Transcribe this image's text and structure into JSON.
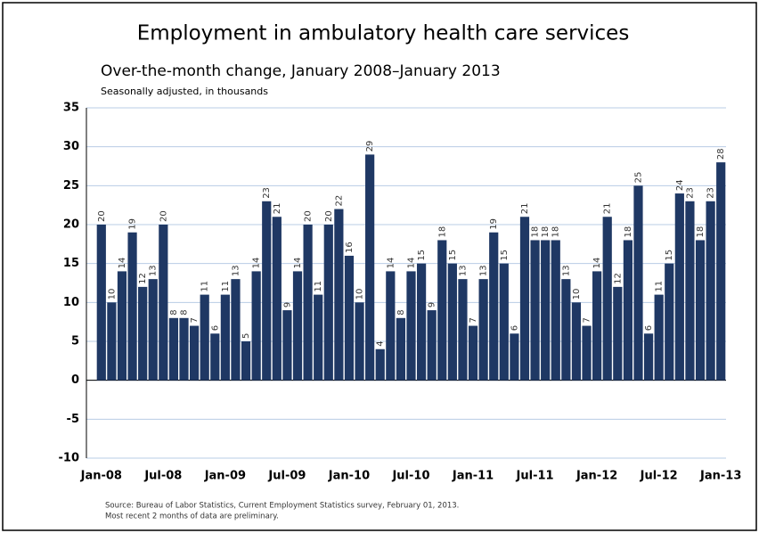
{
  "chart_data": {
    "type": "bar",
    "title": "Employment in ambulatory health care services",
    "subtitle": "Over-the-month change, January 2008–January 2013",
    "y_axis_label": "Seasonally adjusted, in thousands",
    "source": [
      "Source: Bureau of Labor Statistics, Current Employment Statistics survey, February 01, 2013.",
      "Most recent 2 months of data are preliminary."
    ],
    "categories": [
      "Jan-08",
      null,
      null,
      null,
      null,
      null,
      "Jul-08",
      null,
      null,
      null,
      null,
      null,
      "Jan-09",
      null,
      null,
      null,
      null,
      null,
      "Jul-09",
      null,
      null,
      null,
      null,
      null,
      "Jan-10",
      null,
      null,
      null,
      null,
      null,
      "Jul-10",
      null,
      null,
      null,
      null,
      null,
      "Jan-11",
      null,
      null,
      null,
      null,
      null,
      "Jul-11",
      null,
      null,
      null,
      null,
      null,
      "Jan-12",
      null,
      null,
      null,
      null,
      null,
      "Jul-12",
      null,
      null,
      null,
      null,
      null,
      "Jan-13"
    ],
    "values": [
      20,
      10,
      14,
      19,
      12,
      13,
      20,
      8,
      8,
      7,
      11,
      6,
      11,
      13,
      5,
      14,
      23,
      21,
      9,
      14,
      20,
      11,
      20,
      22,
      16,
      10,
      29,
      4,
      14,
      8,
      14,
      15,
      9,
      18,
      15,
      13,
      7,
      13,
      19,
      15,
      6,
      21,
      18,
      18,
      18,
      13,
      10,
      7,
      14,
      21,
      12,
      18,
      25,
      6,
      11,
      15,
      24,
      23,
      18,
      23,
      28
    ],
    "color": "#1f3864",
    "ylim": [
      -10,
      35
    ],
    "yticks": [
      -10,
      -5,
      0,
      5,
      10,
      15,
      20,
      25,
      30,
      35
    ],
    "grid": true
  }
}
